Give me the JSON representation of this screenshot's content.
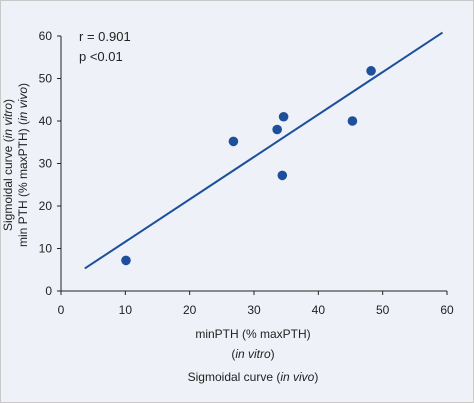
{
  "chart_data": {
    "type": "scatter",
    "title": "",
    "xlabel_line1": "minPTH (%  maxPTH)",
    "xlabel_line2_prefix": "(",
    "xlabel_line2_italic": "in vitro",
    "xlabel_line2_suffix": ")",
    "xlabel_line3_prefix": "Sigmoidal curve (",
    "xlabel_line3_italic": "in vivo",
    "xlabel_line3_suffix": ")",
    "ylabel_line1_prefix": "Sigmoidal curve (",
    "ylabel_line1_italic": "in vitro",
    "ylabel_line1_suffix": ")",
    "ylabel_line2_prefix": "min PTH (% maxPTH) (",
    "ylabel_line2_italic": "in vivo",
    "ylabel_line2_suffix": ")",
    "annotations": [
      "r = 0.901",
      "p <0.01"
    ],
    "xlim": [
      0,
      60
    ],
    "ylim": [
      0,
      60
    ],
    "x_ticks": [
      "0",
      "10",
      "20",
      "30",
      "40",
      "50",
      "60"
    ],
    "y_ticks": [
      "0",
      "10",
      "20",
      "30",
      "40",
      "50",
      "60"
    ],
    "grid": false,
    "points": [
      {
        "x": 10.1,
        "y": 7.2
      },
      {
        "x": 26.8,
        "y": 35.2
      },
      {
        "x": 33.6,
        "y": 38.0
      },
      {
        "x": 34.6,
        "y": 41.0
      },
      {
        "x": 34.4,
        "y": 27.2
      },
      {
        "x": 45.3,
        "y": 40.0
      },
      {
        "x": 48.2,
        "y": 51.8
      }
    ],
    "regression": {
      "x": [
        3.7,
        59.3
      ],
      "y": [
        5.3,
        60.8
      ]
    },
    "colors": {
      "point": "#1d4f9c",
      "line": "#1d4f9c",
      "background": "#eef1f7",
      "axis": "#222222"
    }
  }
}
